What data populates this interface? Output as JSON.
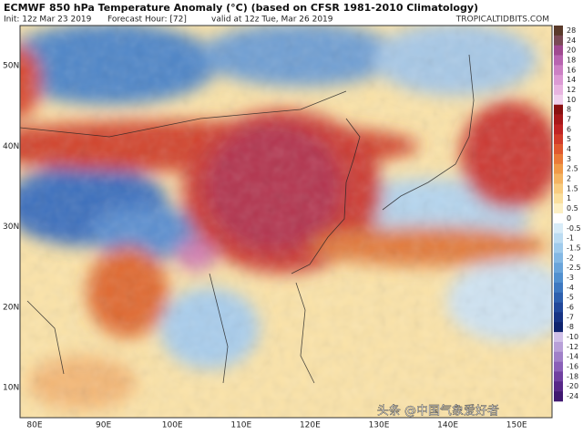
{
  "header": {
    "title": "ECMWF 850 hPa Temperature Anomaly (°C) (based on CFSR 1981-2010 Climatology)",
    "init": "Init: 12z Mar 23 2019",
    "forecast": "Forecast Hour: [72]",
    "valid": "valid at 12z Tue, Mar 26 2019",
    "source": "TROPICALTIDBITS.COM"
  },
  "map": {
    "lat_labels": [
      "50N",
      "40N",
      "30N",
      "20N",
      "10N"
    ],
    "lon_labels": [
      "80E",
      "90E",
      "100E",
      "110E",
      "120E",
      "130E",
      "140E",
      "150E"
    ]
  },
  "colorbar": {
    "labels": [
      28,
      24,
      20,
      18,
      16,
      14,
      12,
      10,
      8,
      7,
      6,
      5,
      4,
      3,
      2.5,
      2,
      1.5,
      1,
      0.5,
      0,
      -0.5,
      -1,
      -1.5,
      -2,
      -2.5,
      -3,
      -4,
      -5,
      -6,
      -7,
      -8,
      -10,
      -12,
      -14,
      -16,
      -18,
      -20,
      -24
    ]
  },
  "watermark": "头条 @中国气象爱好者"
}
